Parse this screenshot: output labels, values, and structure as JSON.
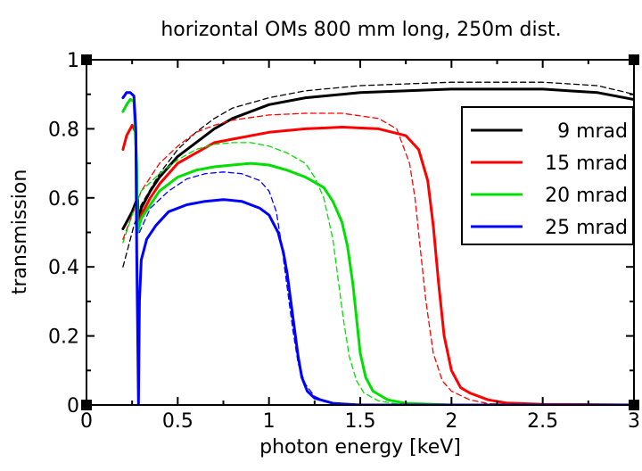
{
  "chart_data": {
    "type": "line",
    "title": "horizontal OMs 800 mm long, 250m dist.",
    "xlabel": "photon energy [keV]",
    "ylabel": "transmission",
    "xlim": [
      0,
      3
    ],
    "ylim": [
      0,
      1
    ],
    "xticks": [
      0,
      0.5,
      1,
      1.5,
      2,
      2.5,
      3
    ],
    "xtick_labels": [
      "0",
      "0.5",
      "1",
      "1.5",
      "2",
      "2.5",
      "3"
    ],
    "yticks": [
      0,
      0.2,
      0.4,
      0.6,
      0.8,
      1
    ],
    "ytick_labels": [
      "0",
      "0.2",
      "0.4",
      "0.6",
      "0.8",
      "1"
    ],
    "grid": false,
    "legend_position": "top-right",
    "legend": [
      "9 mrad",
      "15 mrad",
      "20 mrad",
      "25 mrad"
    ],
    "series": [
      {
        "name": "9 mrad",
        "color": "#000000",
        "style": "solid",
        "points": [
          [
            0.2,
            0.51
          ],
          [
            0.25,
            0.56
          ],
          [
            0.28,
            0.6
          ],
          [
            0.285,
            0.53
          ],
          [
            0.3,
            0.57
          ],
          [
            0.35,
            0.62
          ],
          [
            0.4,
            0.66
          ],
          [
            0.5,
            0.72
          ],
          [
            0.6,
            0.76
          ],
          [
            0.7,
            0.8
          ],
          [
            0.8,
            0.83
          ],
          [
            1.0,
            0.87
          ],
          [
            1.2,
            0.89
          ],
          [
            1.5,
            0.905
          ],
          [
            2.0,
            0.915
          ],
          [
            2.5,
            0.915
          ],
          [
            2.8,
            0.905
          ],
          [
            3.0,
            0.885
          ]
        ]
      },
      {
        "name": "9 mrad (dashed)",
        "color": "#000000",
        "style": "dashed",
        "points": [
          [
            0.2,
            0.4
          ],
          [
            0.23,
            0.46
          ],
          [
            0.26,
            0.52
          ],
          [
            0.3,
            0.58
          ],
          [
            0.4,
            0.67
          ],
          [
            0.5,
            0.74
          ],
          [
            0.6,
            0.79
          ],
          [
            0.7,
            0.83
          ],
          [
            0.8,
            0.86
          ],
          [
            1.0,
            0.89
          ],
          [
            1.2,
            0.91
          ],
          [
            1.5,
            0.925
          ],
          [
            2.0,
            0.935
          ],
          [
            2.5,
            0.935
          ],
          [
            2.8,
            0.925
          ],
          [
            3.0,
            0.9
          ]
        ]
      },
      {
        "name": "15 mrad",
        "color": "#ff0000",
        "style": "solid",
        "points": [
          [
            0.2,
            0.74
          ],
          [
            0.22,
            0.78
          ],
          [
            0.25,
            0.81
          ],
          [
            0.27,
            0.79
          ],
          [
            0.28,
            0.5
          ],
          [
            0.3,
            0.55
          ],
          [
            0.35,
            0.6
          ],
          [
            0.4,
            0.64
          ],
          [
            0.5,
            0.7
          ],
          [
            0.6,
            0.73
          ],
          [
            0.7,
            0.76
          ],
          [
            0.8,
            0.77
          ],
          [
            1.0,
            0.79
          ],
          [
            1.2,
            0.8
          ],
          [
            1.4,
            0.805
          ],
          [
            1.6,
            0.8
          ],
          [
            1.75,
            0.78
          ],
          [
            1.82,
            0.74
          ],
          [
            1.87,
            0.65
          ],
          [
            1.9,
            0.52
          ],
          [
            1.93,
            0.35
          ],
          [
            1.96,
            0.2
          ],
          [
            2.0,
            0.1
          ],
          [
            2.05,
            0.05
          ],
          [
            2.1,
            0.035
          ],
          [
            2.2,
            0.015
          ],
          [
            2.3,
            0.006
          ],
          [
            2.5,
            0.002
          ],
          [
            3.0,
            0.0
          ]
        ]
      },
      {
        "name": "15 mrad (dashed)",
        "color": "#ff0000",
        "style": "dashed",
        "points": [
          [
            0.2,
            0.48
          ],
          [
            0.25,
            0.55
          ],
          [
            0.3,
            0.62
          ],
          [
            0.4,
            0.7
          ],
          [
            0.5,
            0.75
          ],
          [
            0.6,
            0.79
          ],
          [
            0.7,
            0.81
          ],
          [
            0.8,
            0.825
          ],
          [
            1.0,
            0.84
          ],
          [
            1.2,
            0.845
          ],
          [
            1.4,
            0.845
          ],
          [
            1.6,
            0.83
          ],
          [
            1.7,
            0.8
          ],
          [
            1.77,
            0.7
          ],
          [
            1.8,
            0.6
          ],
          [
            1.83,
            0.45
          ],
          [
            1.86,
            0.3
          ],
          [
            1.9,
            0.15
          ],
          [
            1.95,
            0.07
          ],
          [
            2.0,
            0.04
          ],
          [
            2.1,
            0.015
          ],
          [
            2.2,
            0.004
          ],
          [
            2.4,
            0.0
          ],
          [
            3.0,
            0.0
          ]
        ]
      },
      {
        "name": "20 mrad",
        "color": "#00e000",
        "style": "solid",
        "points": [
          [
            0.2,
            0.85
          ],
          [
            0.22,
            0.87
          ],
          [
            0.24,
            0.885
          ],
          [
            0.26,
            0.88
          ],
          [
            0.275,
            0.7
          ],
          [
            0.28,
            0.5
          ],
          [
            0.3,
            0.54
          ],
          [
            0.35,
            0.58
          ],
          [
            0.4,
            0.62
          ],
          [
            0.5,
            0.66
          ],
          [
            0.6,
            0.68
          ],
          [
            0.7,
            0.69
          ],
          [
            0.8,
            0.695
          ],
          [
            0.9,
            0.7
          ],
          [
            1.0,
            0.695
          ],
          [
            1.1,
            0.68
          ],
          [
            1.2,
            0.66
          ],
          [
            1.3,
            0.63
          ],
          [
            1.35,
            0.59
          ],
          [
            1.4,
            0.53
          ],
          [
            1.43,
            0.46
          ],
          [
            1.46,
            0.35
          ],
          [
            1.48,
            0.25
          ],
          [
            1.5,
            0.15
          ],
          [
            1.53,
            0.08
          ],
          [
            1.57,
            0.04
          ],
          [
            1.65,
            0.015
          ],
          [
            1.75,
            0.005
          ],
          [
            2.0,
            0.0
          ],
          [
            3.0,
            0.0
          ]
        ]
      },
      {
        "name": "20 mrad (dashed)",
        "color": "#00e000",
        "style": "dashed",
        "points": [
          [
            0.2,
            0.47
          ],
          [
            0.25,
            0.55
          ],
          [
            0.3,
            0.62
          ],
          [
            0.4,
            0.67
          ],
          [
            0.5,
            0.71
          ],
          [
            0.6,
            0.74
          ],
          [
            0.7,
            0.755
          ],
          [
            0.8,
            0.76
          ],
          [
            0.9,
            0.76
          ],
          [
            1.0,
            0.75
          ],
          [
            1.1,
            0.73
          ],
          [
            1.2,
            0.7
          ],
          [
            1.25,
            0.66
          ],
          [
            1.3,
            0.6
          ],
          [
            1.35,
            0.48
          ],
          [
            1.38,
            0.36
          ],
          [
            1.41,
            0.24
          ],
          [
            1.44,
            0.14
          ],
          [
            1.48,
            0.07
          ],
          [
            1.52,
            0.035
          ],
          [
            1.6,
            0.012
          ],
          [
            1.7,
            0.003
          ],
          [
            1.9,
            0.0
          ],
          [
            3.0,
            0.0
          ]
        ]
      },
      {
        "name": "25 mrad",
        "color": "#0000ff",
        "style": "solid",
        "points": [
          [
            0.2,
            0.89
          ],
          [
            0.22,
            0.905
          ],
          [
            0.24,
            0.905
          ],
          [
            0.26,
            0.895
          ],
          [
            0.27,
            0.8
          ],
          [
            0.275,
            0.45
          ],
          [
            0.28,
            0.23
          ],
          [
            0.285,
            0.0
          ],
          [
            0.29,
            0.3
          ],
          [
            0.3,
            0.42
          ],
          [
            0.33,
            0.48
          ],
          [
            0.38,
            0.52
          ],
          [
            0.45,
            0.56
          ],
          [
            0.55,
            0.58
          ],
          [
            0.65,
            0.59
          ],
          [
            0.75,
            0.595
          ],
          [
            0.85,
            0.59
          ],
          [
            0.95,
            0.57
          ],
          [
            1.0,
            0.55
          ],
          [
            1.05,
            0.5
          ],
          [
            1.08,
            0.44
          ],
          [
            1.1,
            0.38
          ],
          [
            1.12,
            0.3
          ],
          [
            1.14,
            0.22
          ],
          [
            1.16,
            0.14
          ],
          [
            1.18,
            0.08
          ],
          [
            1.21,
            0.04
          ],
          [
            1.25,
            0.02
          ],
          [
            1.35,
            0.005
          ],
          [
            1.5,
            0.0
          ],
          [
            3.0,
            0.0
          ]
        ]
      },
      {
        "name": "25 mrad (dashed)",
        "color": "#0000ff",
        "style": "dashed",
        "points": [
          [
            0.29,
            0.5
          ],
          [
            0.35,
            0.57
          ],
          [
            0.45,
            0.62
          ],
          [
            0.55,
            0.655
          ],
          [
            0.65,
            0.67
          ],
          [
            0.75,
            0.675
          ],
          [
            0.85,
            0.67
          ],
          [
            0.95,
            0.65
          ],
          [
            1.0,
            0.62
          ],
          [
            1.04,
            0.56
          ],
          [
            1.07,
            0.46
          ],
          [
            1.1,
            0.34
          ],
          [
            1.13,
            0.22
          ],
          [
            1.16,
            0.12
          ],
          [
            1.2,
            0.06
          ],
          [
            1.25,
            0.025
          ],
          [
            1.32,
            0.008
          ],
          [
            1.45,
            0.0
          ],
          [
            3.0,
            0.0
          ]
        ]
      }
    ]
  }
}
